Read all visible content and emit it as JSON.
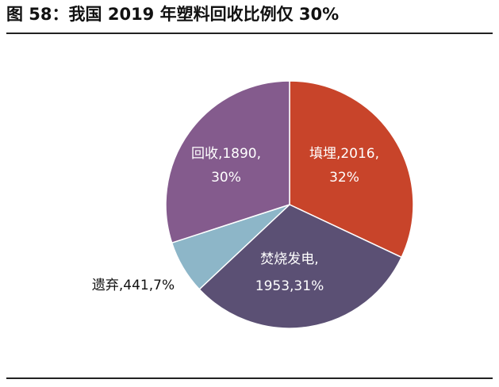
{
  "title": "图 58：我国 2019 年塑料回收比例仅 30%",
  "chart_data": {
    "type": "pie",
    "title": "图 58：我国 2019 年塑料回收比例仅 30%",
    "start": "12 o'clock",
    "direction": "clockwise",
    "slices": [
      {
        "name": "填埋",
        "value": 2016,
        "percent": 32,
        "color": "#c8442a",
        "label_lines": [
          "填埋,2016,",
          "32%"
        ],
        "label_color": "#ffffff"
      },
      {
        "name": "焚烧发电",
        "value": 1953,
        "percent": 31,
        "color": "#5b5074",
        "label_lines": [
          "焚烧发电,",
          "1953,31%"
        ],
        "label_color": "#ffffff"
      },
      {
        "name": "遗弃",
        "value": 441,
        "percent": 7,
        "color": "#8db6c8",
        "label_lines": [
          "遗弃,441,7%"
        ],
        "label_color": "#111111"
      },
      {
        "name": "回收",
        "value": 1890,
        "percent": 30,
        "color": "#845b8d",
        "label_lines": [
          "回收,1890,",
          "30%"
        ],
        "label_color": "#ffffff"
      }
    ]
  }
}
